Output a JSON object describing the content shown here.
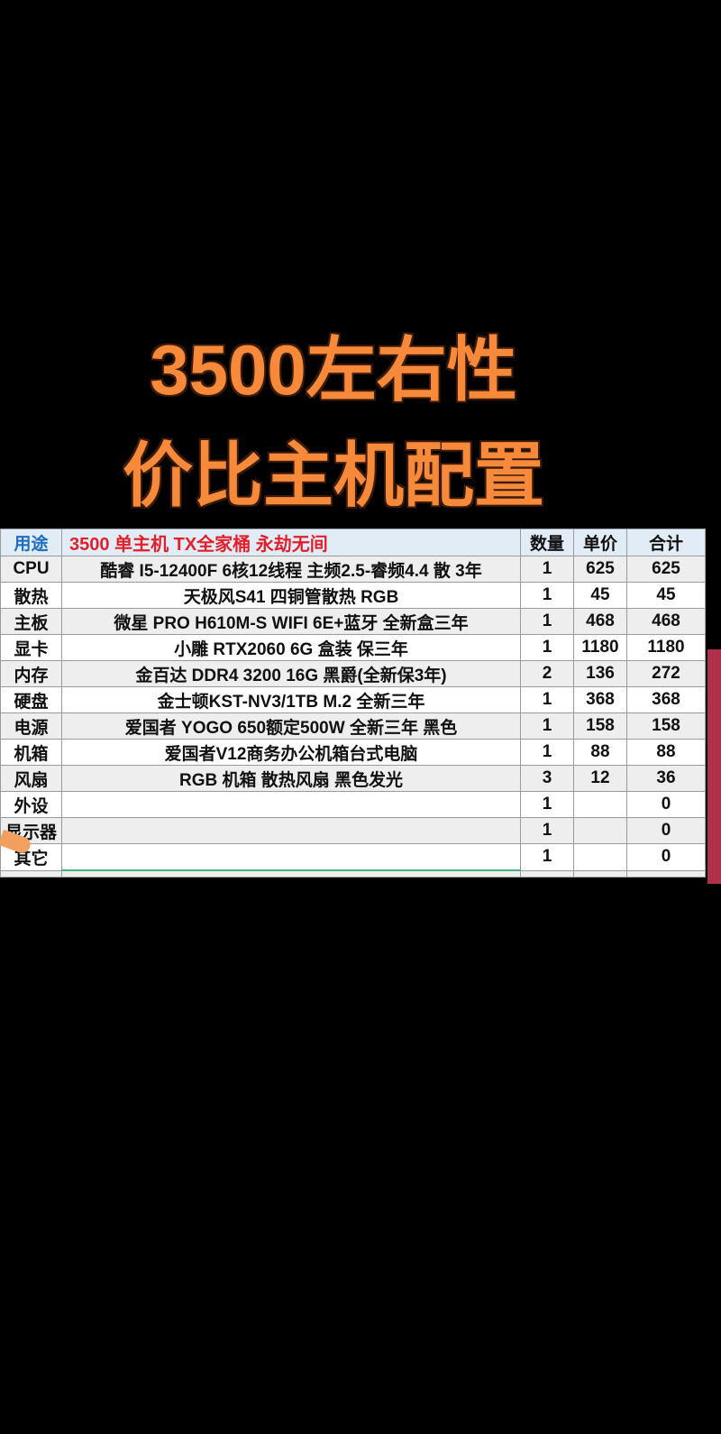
{
  "title": {
    "line1": "3500左右性",
    "line2": "价比主机配置"
  },
  "table": {
    "header": {
      "category": "用途",
      "description": "3500 单主机 TX全家桶  永劫无间",
      "qty": "数量",
      "unit_price": "单价",
      "total": "合计"
    },
    "rows": [
      {
        "category": "CPU",
        "description": "酷睿 I5-12400F 6核12线程 主频2.5-睿频4.4 散 3年",
        "qty": "1",
        "unit_price": "625",
        "total": "625"
      },
      {
        "category": "散热",
        "description": "天极风S41 四铜管散热 RGB",
        "qty": "1",
        "unit_price": "45",
        "total": "45"
      },
      {
        "category": "主板",
        "description": "微星 PRO H610M-S WIFI 6E+蓝牙  全新盒三年",
        "qty": "1",
        "unit_price": "468",
        "total": "468"
      },
      {
        "category": "显卡",
        "description": "小雕 RTX2060 6G 盒装 保三年",
        "qty": "1",
        "unit_price": "1180",
        "total": "1180"
      },
      {
        "category": "内存",
        "description": "金百达 DDR4 3200 16G 黑爵(全新保3年)",
        "qty": "2",
        "unit_price": "136",
        "total": "272"
      },
      {
        "category": "硬盘",
        "description": "金士顿KST-NV3/1TB M.2  全新三年",
        "qty": "1",
        "unit_price": "368",
        "total": "368"
      },
      {
        "category": "电源",
        "description": "爱国者 YOGO 650额定500W  全新三年 黑色",
        "qty": "1",
        "unit_price": "158",
        "total": "158"
      },
      {
        "category": "机箱",
        "description": "爱国者V12商务办公机箱台式电脑",
        "qty": "1",
        "unit_price": "88",
        "total": "88"
      },
      {
        "category": "风扇",
        "description": "RGB  机箱 散热风扇  黑色发光",
        "qty": "3",
        "unit_price": "12",
        "total": "36"
      },
      {
        "category": "外设",
        "description": "",
        "qty": "1",
        "unit_price": "",
        "total": "0"
      },
      {
        "category": "显示器",
        "description": "",
        "qty": "1",
        "unit_price": "",
        "total": "0"
      },
      {
        "category": "其它",
        "description": "",
        "qty": "1",
        "unit_price": "",
        "total": "0"
      }
    ]
  }
}
